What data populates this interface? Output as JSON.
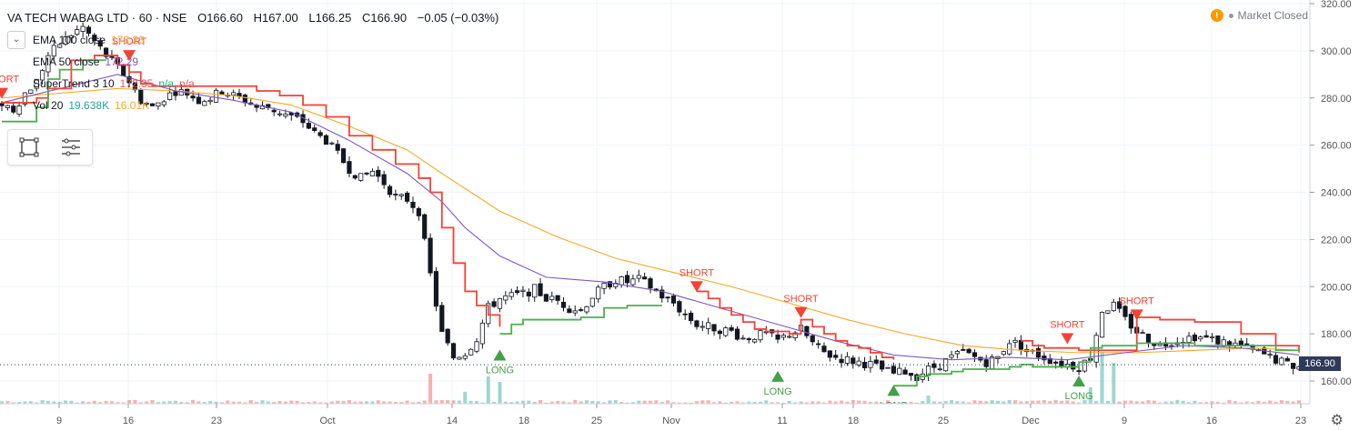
{
  "header": {
    "symbol": "VA TECH WABAG LTD · 60 · NSE",
    "open": "O166.60",
    "high": "H167.00",
    "low": "L166.25",
    "close": "C166.90",
    "change": "−0.05 (−0.03%)"
  },
  "studies": [
    {
      "name": "EMA 100 close",
      "values": [
        "173.23"
      ],
      "colors": [
        "#f9a825"
      ]
    },
    {
      "name": "EMA 50 close",
      "values": [
        "172.29"
      ],
      "colors": [
        "#7e57c2"
      ]
    },
    {
      "name": "SuperTrend 3 10",
      "values": [
        "172.35",
        "n/a",
        "n/a"
      ],
      "colors": [
        "#ef5350",
        "#26a69a",
        "#ef5350"
      ]
    },
    {
      "name": "Vol 20",
      "values": [
        "19.638K",
        "16.01K"
      ],
      "colors": [
        "#26a69a",
        "#f9a825"
      ]
    }
  ],
  "toolbar": {
    "icons": [
      "rectangle-select-icon",
      "object-tree-icon"
    ]
  },
  "market_status": {
    "label": "Market Closed",
    "icon": "warning-icon"
  },
  "last_price": "166.90",
  "colors": {
    "up": "#26a69a",
    "down": "#ef5350",
    "ema100": "#f9a825",
    "ema50": "#7e57c2",
    "st_bull": "#4caf50",
    "st_bear": "#f44336"
  },
  "chart_data": {
    "type": "candlestick",
    "title": "VA TECH WABAG LTD · 60 · NSE",
    "y_ticks": [
      "320.00",
      "300.00",
      "280.00",
      "260.00",
      "240.00",
      "220.00",
      "200.00",
      "180.00",
      "160.00"
    ],
    "ylim": [
      155,
      320
    ],
    "x_ticks": [
      "9",
      "16",
      "23",
      "Oct",
      "14",
      "18",
      "25",
      "Nov",
      "11",
      "18",
      "25",
      "Dec",
      "9",
      "16",
      "23"
    ],
    "grid": true,
    "close_path": [
      [
        0,
        278
      ],
      [
        2,
        275
      ],
      [
        4,
        282
      ],
      [
        6,
        287
      ],
      [
        8,
        298
      ],
      [
        10,
        303
      ],
      [
        12,
        307
      ],
      [
        14,
        310
      ],
      [
        16,
        304
      ],
      [
        18,
        298
      ],
      [
        20,
        293
      ],
      [
        22,
        287
      ],
      [
        24,
        279
      ],
      [
        26,
        276
      ],
      [
        28,
        280
      ],
      [
        30,
        283
      ],
      [
        32,
        282
      ],
      [
        34,
        279
      ],
      [
        36,
        280
      ],
      [
        38,
        283
      ],
      [
        40,
        281
      ],
      [
        42,
        279
      ],
      [
        44,
        276
      ],
      [
        46,
        276
      ],
      [
        48,
        274
      ],
      [
        50,
        272
      ],
      [
        52,
        270
      ],
      [
        54,
        265
      ],
      [
        56,
        262
      ],
      [
        58,
        256
      ],
      [
        60,
        250
      ],
      [
        62,
        246
      ],
      [
        64,
        249
      ],
      [
        66,
        244
      ],
      [
        68,
        238
      ],
      [
        70,
        237
      ],
      [
        72,
        232
      ],
      [
        74,
        205
      ],
      [
        76,
        180
      ],
      [
        78,
        170
      ],
      [
        80,
        172
      ],
      [
        82,
        178
      ],
      [
        84,
        191
      ],
      [
        86,
        195
      ],
      [
        88,
        196
      ],
      [
        90,
        197
      ],
      [
        92,
        199
      ],
      [
        94,
        195
      ],
      [
        96,
        194
      ],
      [
        98,
        191
      ],
      [
        100,
        190
      ],
      [
        102,
        196
      ],
      [
        104,
        200
      ],
      [
        106,
        203
      ],
      [
        108,
        202
      ],
      [
        110,
        203
      ],
      [
        112,
        200
      ],
      [
        114,
        196
      ],
      [
        116,
        193
      ],
      [
        118,
        188
      ],
      [
        120,
        184
      ],
      [
        122,
        183
      ],
      [
        124,
        182
      ],
      [
        126,
        181
      ],
      [
        128,
        178
      ],
      [
        130,
        179
      ],
      [
        132,
        180
      ],
      [
        134,
        177
      ],
      [
        136,
        180
      ],
      [
        138,
        182
      ],
      [
        140,
        176
      ],
      [
        142,
        172
      ],
      [
        144,
        170
      ],
      [
        146,
        169
      ],
      [
        148,
        168
      ],
      [
        150,
        167
      ],
      [
        152,
        165
      ],
      [
        154,
        163
      ],
      [
        156,
        164
      ],
      [
        158,
        162
      ],
      [
        160,
        165
      ],
      [
        162,
        167
      ],
      [
        164,
        170
      ],
      [
        166,
        172
      ],
      [
        168,
        170
      ],
      [
        170,
        168
      ],
      [
        172,
        170
      ],
      [
        174,
        177
      ],
      [
        176,
        175
      ],
      [
        178,
        172
      ],
      [
        180,
        170
      ],
      [
        182,
        168
      ],
      [
        184,
        167
      ],
      [
        186,
        166
      ],
      [
        188,
        170
      ],
      [
        190,
        190
      ],
      [
        192,
        192
      ],
      [
        194,
        186
      ],
      [
        196,
        181
      ],
      [
        198,
        178
      ],
      [
        200,
        175
      ],
      [
        202,
        177
      ],
      [
        204,
        178
      ],
      [
        206,
        179
      ],
      [
        208,
        178
      ],
      [
        210,
        177
      ],
      [
        212,
        176
      ],
      [
        214,
        175
      ],
      [
        216,
        173
      ],
      [
        218,
        171
      ],
      [
        220,
        169
      ],
      [
        222,
        167
      ],
      [
        224,
        166
      ]
    ],
    "ema50_path": [
      [
        0,
        278
      ],
      [
        20,
        290
      ],
      [
        30,
        283
      ],
      [
        40,
        279
      ],
      [
        50,
        274
      ],
      [
        60,
        262
      ],
      [
        70,
        248
      ],
      [
        76,
        236
      ],
      [
        80,
        225
      ],
      [
        86,
        213
      ],
      [
        94,
        204
      ],
      [
        104,
        202
      ],
      [
        114,
        198
      ],
      [
        124,
        191
      ],
      [
        134,
        184
      ],
      [
        144,
        177
      ],
      [
        154,
        171
      ],
      [
        164,
        169
      ],
      [
        174,
        170
      ],
      [
        184,
        169
      ],
      [
        194,
        172
      ],
      [
        204,
        175
      ],
      [
        214,
        174
      ],
      [
        224,
        171
      ]
    ],
    "ema100_path": [
      [
        0,
        280
      ],
      [
        20,
        284
      ],
      [
        30,
        283
      ],
      [
        40,
        281
      ],
      [
        50,
        277
      ],
      [
        60,
        268
      ],
      [
        70,
        258
      ],
      [
        76,
        248
      ],
      [
        86,
        232
      ],
      [
        96,
        221
      ],
      [
        106,
        212
      ],
      [
        116,
        206
      ],
      [
        126,
        200
      ],
      [
        136,
        193
      ],
      [
        146,
        186
      ],
      [
        156,
        180
      ],
      [
        166,
        175
      ],
      [
        176,
        173
      ],
      [
        186,
        172
      ],
      [
        196,
        172
      ],
      [
        206,
        173
      ],
      [
        216,
        174
      ],
      [
        224,
        173
      ]
    ],
    "supertrend_bear_path": [
      [
        0,
        278
      ],
      [
        4,
        278
      ],
      [
        6,
        280
      ],
      [
        8,
        284
      ],
      [
        12,
        296
      ],
      [
        16,
        298
      ],
      [
        20,
        294
      ],
      [
        22,
        291
      ],
      [
        24,
        286
      ],
      [
        26,
        285
      ],
      [
        34,
        285
      ],
      [
        40,
        285
      ],
      [
        44,
        283
      ],
      [
        48,
        281
      ],
      [
        52,
        277
      ],
      [
        56,
        272
      ],
      [
        60,
        264
      ],
      [
        64,
        258
      ],
      [
        68,
        252
      ],
      [
        72,
        246
      ],
      [
        74,
        240
      ],
      [
        76,
        225
      ],
      [
        78,
        210
      ],
      [
        80,
        198
      ],
      [
        82,
        192
      ],
      [
        84,
        188
      ],
      [
        86,
        183
      ],
      [
        120,
        198
      ],
      [
        122,
        195
      ],
      [
        124,
        191
      ],
      [
        126,
        188
      ],
      [
        128,
        185
      ],
      [
        130,
        182
      ],
      [
        132,
        181
      ],
      [
        136,
        180
      ],
      [
        138,
        186
      ],
      [
        140,
        183
      ],
      [
        142,
        180
      ],
      [
        144,
        177
      ],
      [
        146,
        175
      ],
      [
        148,
        174
      ],
      [
        150,
        172
      ],
      [
        152,
        170
      ],
      [
        154,
        169
      ],
      [
        176,
        177
      ],
      [
        178,
        175
      ],
      [
        180,
        174
      ],
      [
        186,
        173
      ],
      [
        196,
        187
      ],
      [
        200,
        186
      ],
      [
        206,
        185
      ],
      [
        214,
        180
      ],
      [
        220,
        175
      ],
      [
        224,
        173
      ]
    ],
    "supertrend_bull_path": [
      [
        0,
        270
      ],
      [
        2,
        270
      ],
      [
        4,
        270
      ],
      [
        6,
        276
      ],
      [
        8,
        288
      ],
      [
        10,
        292
      ],
      [
        12,
        292
      ],
      [
        14,
        296
      ],
      [
        16,
        296
      ],
      [
        18,
        296
      ],
      [
        86,
        180
      ],
      [
        88,
        184
      ],
      [
        90,
        186
      ],
      [
        94,
        186
      ],
      [
        98,
        186
      ],
      [
        100,
        187
      ],
      [
        104,
        191
      ],
      [
        108,
        192
      ],
      [
        112,
        192
      ],
      [
        114,
        192
      ],
      [
        154,
        158
      ],
      [
        156,
        158
      ],
      [
        158,
        162
      ],
      [
        160,
        163
      ],
      [
        164,
        164
      ],
      [
        166,
        165
      ],
      [
        168,
        165
      ],
      [
        170,
        165
      ],
      [
        172,
        165
      ],
      [
        174,
        166
      ],
      [
        176,
        167
      ],
      [
        178,
        166
      ],
      [
        186,
        168
      ],
      [
        188,
        174
      ],
      [
        190,
        175
      ],
      [
        196,
        176
      ],
      [
        202,
        176
      ],
      [
        206,
        175
      ],
      [
        214,
        175
      ],
      [
        220,
        173
      ],
      [
        224,
        172
      ]
    ],
    "signals": [
      {
        "label": "SHORT",
        "kind": "short",
        "i": 0,
        "price": 282
      },
      {
        "label": "SHORT",
        "kind": "short",
        "i": 22,
        "price": 298
      },
      {
        "label": "LONG",
        "kind": "long",
        "i": 86,
        "price": 171
      },
      {
        "label": "SHORT",
        "kind": "short",
        "i": 120,
        "price": 200
      },
      {
        "label": "LONG",
        "kind": "long",
        "i": 134,
        "price": 162
      },
      {
        "label": "SHORT",
        "kind": "short",
        "i": 138,
        "price": 189
      },
      {
        "label": "LONG",
        "kind": "long",
        "i": 154,
        "price": 156
      },
      {
        "label": "SHORT",
        "kind": "short",
        "i": 184,
        "price": 178
      },
      {
        "label": "LONG",
        "kind": "long",
        "i": 186,
        "price": 160
      },
      {
        "label": "SHORT",
        "kind": "short",
        "i": 196,
        "price": 188
      }
    ],
    "volume_spikes": [
      [
        74,
        0.55
      ],
      [
        80,
        0.22
      ],
      [
        84,
        0.5
      ],
      [
        86,
        0.4
      ],
      [
        160,
        0.15
      ],
      [
        188,
        0.3
      ],
      [
        190,
        0.95
      ],
      [
        192,
        0.75
      ]
    ]
  }
}
